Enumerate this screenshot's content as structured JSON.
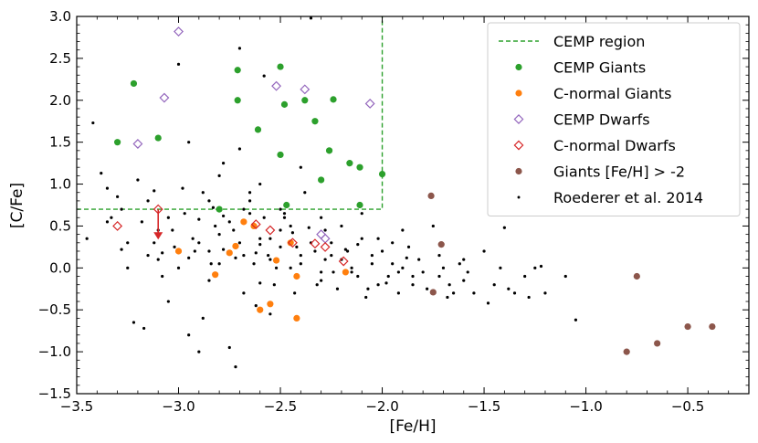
{
  "chart_data": {
    "type": "scatter",
    "title": "",
    "xlabel": "[Fe/H]",
    "ylabel": "[C/Fe]",
    "xlim": [
      -3.5,
      -0.2
    ],
    "ylim": [
      -1.5,
      3.0
    ],
    "xticks": [
      -3.5,
      -3.0,
      -2.5,
      -2.0,
      -1.5,
      -1.0,
      -0.5
    ],
    "xtick_labels": [
      "−3.5",
      "−3.0",
      "−2.5",
      "−2.0",
      "−1.5",
      "−1.0",
      "−0.5"
    ],
    "yticks": [
      -1.5,
      -1.0,
      -0.5,
      0.0,
      0.5,
      1.0,
      1.5,
      2.0,
      2.5,
      3.0
    ],
    "ytick_labels": [
      "−1.5",
      "−1.0",
      "−0.5",
      "0.0",
      "0.5",
      "1.0",
      "1.5",
      "2.0",
      "2.5",
      "3.0"
    ],
    "legend_position": "top-right",
    "cemp_region": {
      "label": "CEMP region",
      "color": "#2ca02c",
      "feh_max": -2.0,
      "cfe_min": 0.7
    },
    "upper_limit_arrow": {
      "x": -3.1,
      "y_from": 0.7,
      "y_to": 0.36,
      "color": "#d62728"
    },
    "series": [
      {
        "name": "CEMP Giants",
        "marker": "filled-circle",
        "color": "#2ca02c",
        "points": [
          [
            -3.3,
            1.5
          ],
          [
            -3.22,
            2.2
          ],
          [
            -3.1,
            1.55
          ],
          [
            -2.8,
            0.7
          ],
          [
            -2.71,
            2.36
          ],
          [
            -2.71,
            2.0
          ],
          [
            -2.61,
            1.65
          ],
          [
            -2.5,
            2.4
          ],
          [
            -2.5,
            1.35
          ],
          [
            -2.48,
            1.95
          ],
          [
            -2.47,
            0.75
          ],
          [
            -2.38,
            2.0
          ],
          [
            -2.33,
            1.75
          ],
          [
            -2.3,
            1.05
          ],
          [
            -2.26,
            1.4
          ],
          [
            -2.24,
            2.01
          ],
          [
            -2.16,
            1.25
          ],
          [
            -2.11,
            1.2
          ],
          [
            -2.11,
            0.75
          ],
          [
            -2.0,
            1.12
          ]
        ]
      },
      {
        "name": "C-normal Giants",
        "marker": "filled-circle",
        "color": "#ff7f0e",
        "points": [
          [
            -3.0,
            0.2
          ],
          [
            -2.82,
            -0.08
          ],
          [
            -2.75,
            0.18
          ],
          [
            -2.72,
            0.26
          ],
          [
            -2.68,
            0.55
          ],
          [
            -2.63,
            0.5
          ],
          [
            -2.6,
            -0.5
          ],
          [
            -2.55,
            -0.43
          ],
          [
            -2.52,
            0.09
          ],
          [
            -2.45,
            0.3
          ],
          [
            -2.42,
            -0.1
          ],
          [
            -2.42,
            -0.6
          ],
          [
            -2.18,
            -0.05
          ]
        ]
      },
      {
        "name": "CEMP Dwarfs",
        "marker": "open-diamond",
        "color": "#9467bd",
        "points": [
          [
            -3.2,
            1.48
          ],
          [
            -3.07,
            2.03
          ],
          [
            -3.0,
            2.82
          ],
          [
            -2.52,
            2.17
          ],
          [
            -2.38,
            2.13
          ],
          [
            -2.06,
            1.96
          ],
          [
            -2.3,
            0.4
          ],
          [
            -2.28,
            0.35
          ]
        ]
      },
      {
        "name": "C-normal Dwarfs",
        "marker": "open-diamond",
        "color": "#d62728",
        "points": [
          [
            -3.3,
            0.5
          ],
          [
            -3.1,
            0.7
          ],
          [
            -2.62,
            0.52
          ],
          [
            -2.55,
            0.45
          ],
          [
            -2.44,
            0.3
          ],
          [
            -2.33,
            0.29
          ],
          [
            -2.28,
            0.25
          ],
          [
            -2.19,
            0.08
          ]
        ]
      },
      {
        "name": "Giants [Fe/H] > -2",
        "marker": "filled-circle",
        "color": "#8c564b",
        "points": [
          [
            -1.76,
            0.86
          ],
          [
            -1.71,
            0.28
          ],
          [
            -1.75,
            -0.29
          ],
          [
            -0.8,
            -1.0
          ],
          [
            -0.75,
            -0.1
          ],
          [
            -0.65,
            -0.9
          ],
          [
            -0.5,
            -0.7
          ],
          [
            -0.38,
            -0.7
          ]
        ]
      },
      {
        "name": "Roederer et al. 2014",
        "marker": "small-dot",
        "color": "#000000",
        "points": [
          [
            -3.42,
            1.73
          ],
          [
            -3.38,
            1.13
          ],
          [
            -3.35,
            0.95
          ],
          [
            -3.33,
            0.6
          ],
          [
            -3.3,
            0.85
          ],
          [
            -3.28,
            0.22
          ],
          [
            -3.25,
            0.0
          ],
          [
            -3.2,
            1.05
          ],
          [
            -3.18,
            0.55
          ],
          [
            -3.15,
            0.8
          ],
          [
            -3.12,
            0.3
          ],
          [
            -3.1,
            0.1
          ],
          [
            -3.08,
            -0.1
          ],
          [
            -3.05,
            0.6
          ],
          [
            -3.03,
            0.45
          ],
          [
            -3.0,
            2.43
          ],
          [
            -2.98,
            0.95
          ],
          [
            -2.95,
            0.12
          ],
          [
            -2.93,
            0.35
          ],
          [
            -2.9,
            0.58
          ],
          [
            -2.88,
            -0.6
          ],
          [
            -2.85,
            0.2
          ],
          [
            -2.83,
            0.72
          ],
          [
            -2.8,
            0.05
          ],
          [
            -2.78,
            1.25
          ],
          [
            -2.75,
            -0.95
          ],
          [
            -2.73,
            0.45
          ],
          [
            -2.7,
            2.62
          ],
          [
            -2.68,
            0.15
          ],
          [
            -2.65,
            0.8
          ],
          [
            -2.63,
            0.05
          ],
          [
            -2.6,
            -0.18
          ],
          [
            -2.58,
            2.29
          ],
          [
            -2.55,
            0.1
          ],
          [
            -2.53,
            -0.2
          ],
          [
            -2.5,
            0.25
          ],
          [
            -2.48,
            0.6
          ],
          [
            -2.45,
            0.0
          ],
          [
            -2.43,
            -0.3
          ],
          [
            -2.4,
            0.15
          ],
          [
            -2.38,
            0.9
          ],
          [
            -2.35,
            2.98
          ],
          [
            -2.33,
            0.2
          ],
          [
            -2.3,
            -0.05
          ],
          [
            -2.28,
            0.1
          ],
          [
            -2.25,
            0.3
          ],
          [
            -2.22,
            -0.25
          ],
          [
            -2.2,
            0.5
          ],
          [
            -2.17,
            0.2
          ],
          [
            -2.15,
            0.0
          ],
          [
            -2.12,
            -0.1
          ],
          [
            -2.1,
            0.35
          ],
          [
            -2.07,
            -0.25
          ],
          [
            -2.05,
            0.05
          ],
          [
            -2.02,
            -0.2
          ],
          [
            -2.0,
            0.2
          ],
          [
            -1.97,
            -0.1
          ],
          [
            -1.95,
            0.05
          ],
          [
            -1.92,
            -0.3
          ],
          [
            -1.9,
            0.0
          ],
          [
            -1.87,
            0.25
          ],
          [
            -1.85,
            -0.2
          ],
          [
            -1.82,
            0.1
          ],
          [
            -1.8,
            -0.05
          ],
          [
            -1.78,
            -0.25
          ],
          [
            -1.75,
            0.5
          ],
          [
            -1.72,
            -0.1
          ],
          [
            -1.7,
            0.0
          ],
          [
            -1.67,
            -0.2
          ],
          [
            -1.65,
            -0.3
          ],
          [
            -1.62,
            0.05
          ],
          [
            -1.6,
            -0.15
          ],
          [
            -1.55,
            -0.3
          ],
          [
            -1.5,
            0.2
          ],
          [
            -1.45,
            -0.2
          ],
          [
            -1.4,
            0.48
          ],
          [
            -1.35,
            -0.3
          ],
          [
            -1.3,
            -0.1
          ],
          [
            -1.25,
            0.0
          ],
          [
            -1.2,
            -0.3
          ],
          [
            -1.1,
            -0.1
          ],
          [
            -1.05,
            -0.62
          ],
          [
            -3.45,
            0.35
          ],
          [
            -3.22,
            -0.65
          ],
          [
            -3.17,
            -0.72
          ],
          [
            -3.05,
            -0.4
          ],
          [
            -2.95,
            -0.8
          ],
          [
            -2.9,
            -1.0
          ],
          [
            -2.85,
            -0.15
          ],
          [
            -2.72,
            -1.18
          ],
          [
            -2.68,
            -0.3
          ],
          [
            -2.55,
            -0.55
          ],
          [
            -2.62,
            -0.45
          ],
          [
            -2.9,
            0.3
          ],
          [
            -2.8,
            0.4
          ],
          [
            -2.7,
            0.3
          ],
          [
            -2.6,
            0.35
          ],
          [
            -2.5,
            0.45
          ],
          [
            -2.4,
            0.05
          ],
          [
            -2.3,
            -0.15
          ],
          [
            -2.2,
            0.1
          ],
          [
            -3.0,
            0.0
          ],
          [
            -3.15,
            0.15
          ],
          [
            -3.25,
            0.3
          ],
          [
            -2.75,
            0.55
          ],
          [
            -2.65,
            0.65
          ],
          [
            -2.85,
            0.8
          ],
          [
            -2.55,
            0.35
          ],
          [
            -2.45,
            0.5
          ],
          [
            -2.35,
            0.3
          ],
          [
            -2.25,
            0.15
          ],
          [
            -2.15,
            -0.05
          ],
          [
            -2.05,
            0.15
          ],
          [
            -1.95,
            0.3
          ],
          [
            -1.85,
            -0.1
          ],
          [
            -1.9,
            0.45
          ],
          [
            -2.1,
            0.65
          ],
          [
            -2.3,
            0.6
          ],
          [
            -2.5,
            0.7
          ],
          [
            -2.6,
            1.0
          ],
          [
            -2.8,
            1.1
          ],
          [
            -2.95,
            1.5
          ],
          [
            -2.7,
            1.42
          ],
          [
            -2.4,
            1.2
          ],
          [
            -2.65,
            0.9
          ],
          [
            -3.35,
            0.55
          ],
          [
            -3.1,
            0.45
          ],
          [
            -2.97,
            0.65
          ],
          [
            -2.78,
            0.22
          ],
          [
            -2.58,
            0.6
          ],
          [
            -2.42,
            0.25
          ],
          [
            -2.62,
            0.18
          ],
          [
            -2.82,
            0.5
          ],
          [
            -3.02,
            0.25
          ],
          [
            -2.72,
            0.12
          ],
          [
            -2.52,
            0.0
          ],
          [
            -2.32,
            -0.2
          ],
          [
            -2.12,
            0.28
          ],
          [
            -1.98,
            -0.18
          ],
          [
            -1.88,
            0.12
          ],
          [
            -1.68,
            -0.35
          ],
          [
            -1.58,
            -0.05
          ],
          [
            -1.48,
            -0.42
          ],
          [
            -1.38,
            -0.25
          ],
          [
            -1.28,
            -0.35
          ],
          [
            -1.22,
            0.02
          ],
          [
            -1.42,
            0.0
          ],
          [
            -3.28,
            0.7
          ],
          [
            -2.88,
            0.9
          ],
          [
            -2.68,
            0.7
          ],
          [
            -2.48,
            0.65
          ],
          [
            -2.28,
            0.45
          ],
          [
            -2.08,
            -0.35
          ],
          [
            -1.92,
            -0.05
          ],
          [
            -1.72,
            0.15
          ],
          [
            -1.6,
            0.1
          ],
          [
            -2.92,
            0.2
          ],
          [
            -2.78,
            0.62
          ],
          [
            -2.6,
            0.28
          ],
          [
            -2.36,
            0.48
          ],
          [
            -2.18,
            0.22
          ],
          [
            -2.02,
            0.35
          ],
          [
            -3.12,
            0.92
          ],
          [
            -3.08,
            0.18
          ],
          [
            -2.84,
            0.05
          ],
          [
            -2.56,
            0.15
          ],
          [
            -2.44,
            0.42
          ],
          [
            -2.24,
            -0.05
          ]
        ]
      }
    ]
  }
}
